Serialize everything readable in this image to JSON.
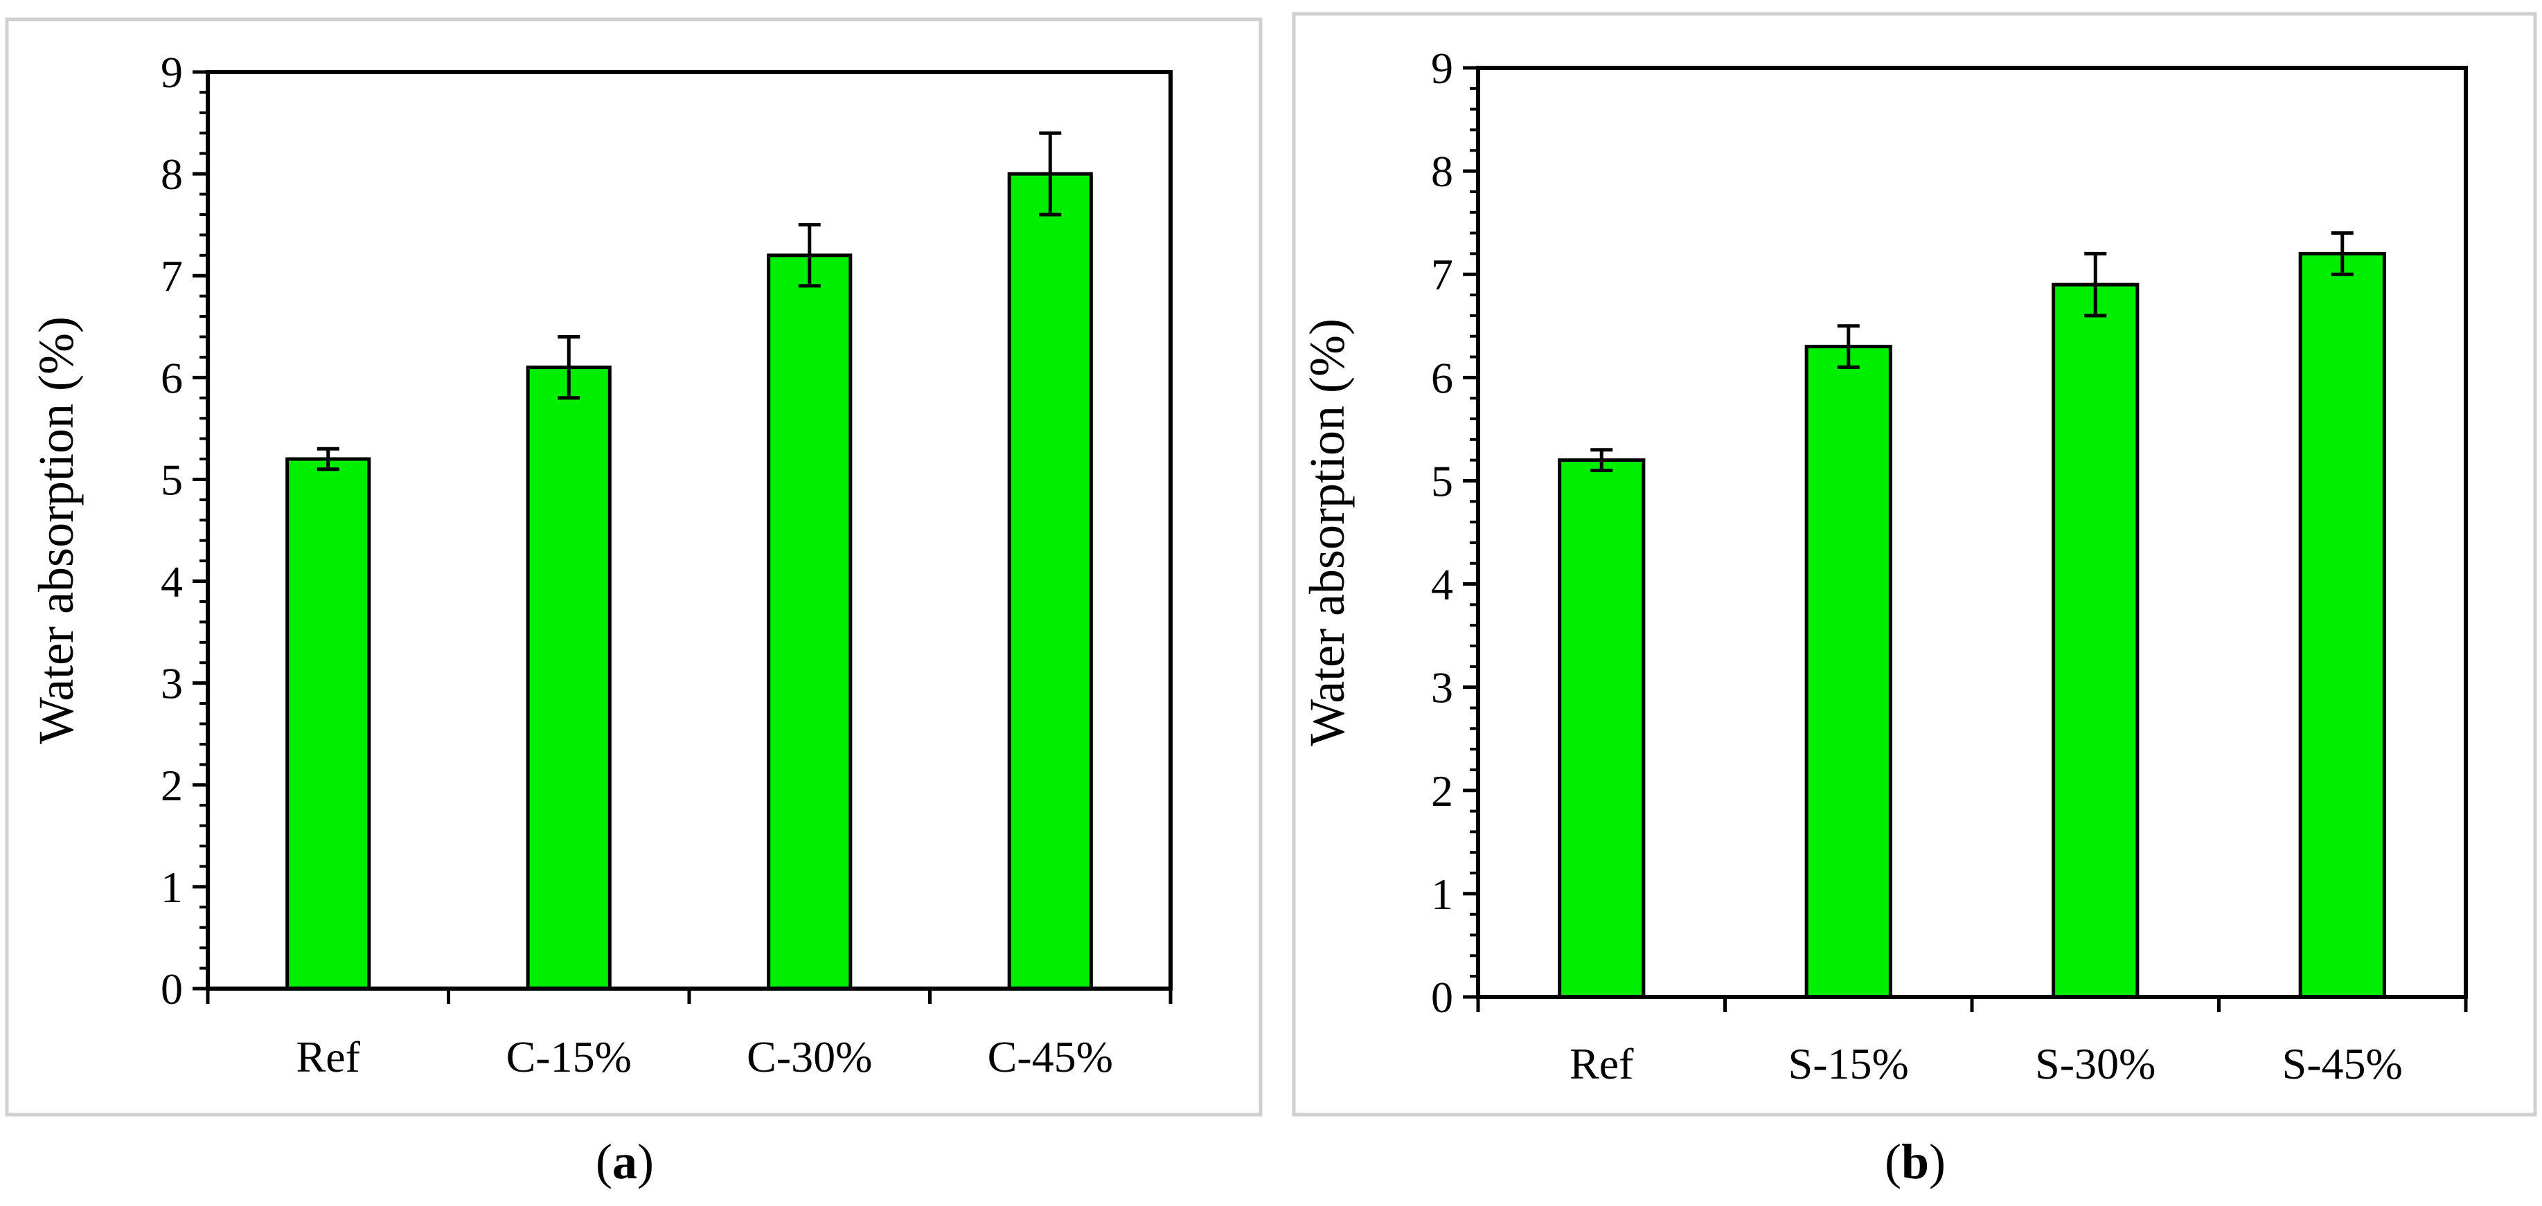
{
  "chart_data": [
    {
      "type": "bar",
      "panel_label": "a",
      "categories": [
        "Ref",
        "C-15%",
        "C-30%",
        "C-45%"
      ],
      "values": [
        5.2,
        6.1,
        7.2,
        8.0
      ],
      "errors": [
        0.1,
        0.3,
        0.3,
        0.4
      ],
      "title": "",
      "xlabel": "",
      "ylabel": "Water absorption (%)",
      "ylim": [
        0,
        9
      ],
      "yticks": [
        "0",
        "1",
        "2",
        "3",
        "4",
        "5",
        "6",
        "7",
        "8",
        "9"
      ],
      "bar_color": "#00ee00",
      "grid": false
    },
    {
      "type": "bar",
      "panel_label": "b",
      "categories": [
        "Ref",
        "S-15%",
        "S-30%",
        "S-45%"
      ],
      "values": [
        5.2,
        6.3,
        6.9,
        7.2
      ],
      "errors": [
        0.1,
        0.2,
        0.3,
        0.2
      ],
      "title": "",
      "xlabel": "",
      "ylabel": "Water absorption (%)",
      "ylim": [
        0,
        9
      ],
      "yticks": [
        "0",
        "1",
        "2",
        "3",
        "4",
        "5",
        "6",
        "7",
        "8",
        "9"
      ],
      "bar_color": "#00ee00",
      "grid": false
    }
  ]
}
